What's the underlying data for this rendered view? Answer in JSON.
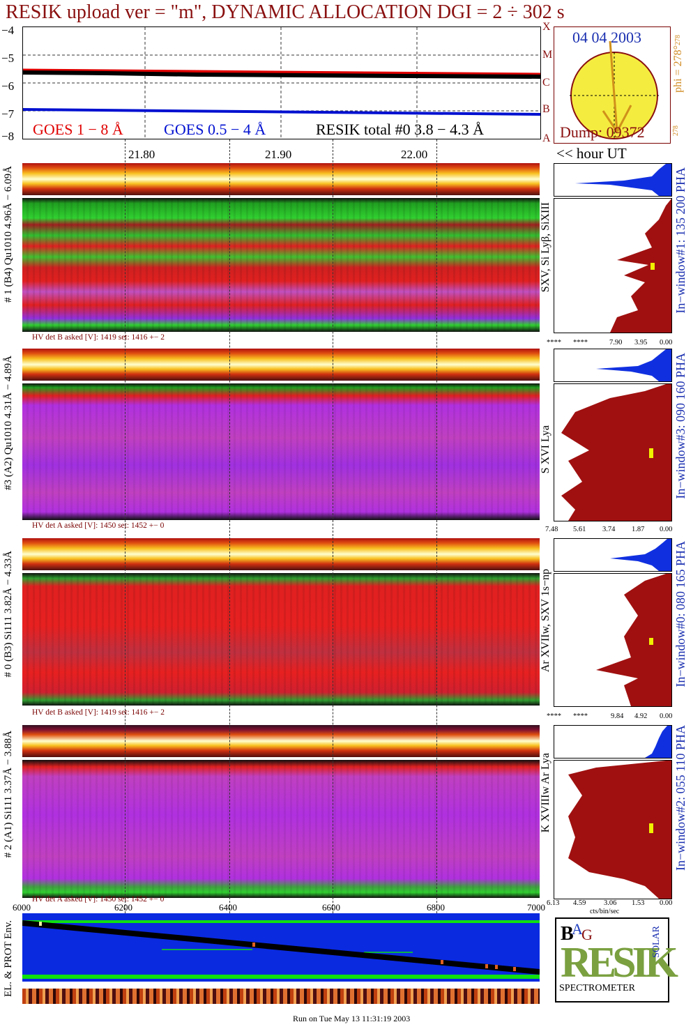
{
  "title": "RESIK upload ver = \"m\", DYNAMIC ALLOCATION  DGI =   2 ÷ 302 s",
  "goes": {
    "y_ticks": [
      "−4",
      "−5",
      "−6",
      "−7",
      "−8"
    ],
    "legend_goes_long": "GOES 1 − 8 Å",
    "legend_goes_short": "GOES 0.5 − 4 Å",
    "legend_resik": "RESIK total #0  3.8 − 4.3 Å",
    "class_letters": [
      "A",
      "B",
      "C",
      "M",
      "X"
    ]
  },
  "sun": {
    "date": "04 04 2003",
    "phi": "phi = 278°",
    "phi_sup": "278",
    "phi_bottom": "278",
    "dump": "Dump: 09372"
  },
  "hour_axis": {
    "ticks": [
      "21.80",
      "21.90",
      "22.00"
    ],
    "unit_label": "<< hour UT"
  },
  "panels": [
    {
      "side_label": "# 1 (B4) Qu1010 4.96Å − 6.09Å",
      "line_label": "SXV, Si Lyβ, SiXIII",
      "hv": "HV det B asked [V]:  1419 set:  1416 +−   2",
      "window_label": "In−window#1:  135 200 PHA",
      "hist_ticks": [
        "****",
        "****",
        "7.90",
        "3.95",
        "0.00"
      ]
    },
    {
      "side_label": "#3 (A2) Qu1010  4.31Å − 4.89Å",
      "line_label": "S XVI Lya",
      "hv": "HV det A asked [V]:  1450 set:  1452 +−    0",
      "window_label": "In−window#3:  090 160 PHA",
      "hist_ticks": [
        "7.48",
        "5.61",
        "3.74",
        "1.87",
        "0.00"
      ]
    },
    {
      "side_label": "# 0 (B3) Si111  3.82Å − 4.33Å",
      "line_label": "Ar XVIIw,  SXV 1s−np",
      "hv": "HV det B asked [V]:  1419 set:  1416 +−   2",
      "window_label": "In−window#0:  080 165 PHA",
      "hist_ticks": [
        "****",
        "****",
        "9.84",
        "4.92",
        "0.00"
      ]
    },
    {
      "side_label": "# 2 (A1) Si111  3.37Å − 3.88Å",
      "line_label": "K XVIIIw  Ar Lya",
      "hv": "HV det A asked [V]:  1450 set:  1452 +−    0",
      "window_label": "In−window#2:  055 110 PHA",
      "hist_ticks": [
        "6.13",
        "4.59",
        "3.06",
        "1.53",
        "0.00"
      ]
    }
  ],
  "hist_unit": "cts/bin/sec",
  "dgi_axis": {
    "ticks": [
      "6000",
      "6200",
      "6400",
      "6600",
      "6800",
      "7000"
    ]
  },
  "env_label": "EL. & PROT Env.",
  "logo": {
    "letters": "RESIK",
    "b": "B",
    "r": "R",
    "a": "A",
    "g": "G",
    "solar": "SOLAR",
    "bottom": "SPECTROMETER"
  },
  "footer": "Run on Tue May 13 11:31:19 2003",
  "colors": {
    "title": "#8a1010",
    "goes_long": "#e00000",
    "goes_short": "#0010d0",
    "resik": "#000000",
    "hist_fill": "#a01010",
    "hist_top": "#1030e0",
    "label_blue": "#1a2fb0",
    "label_orange": "#d08a20",
    "env_bg": "#0a2ae0",
    "env_green": "#10e010"
  }
}
